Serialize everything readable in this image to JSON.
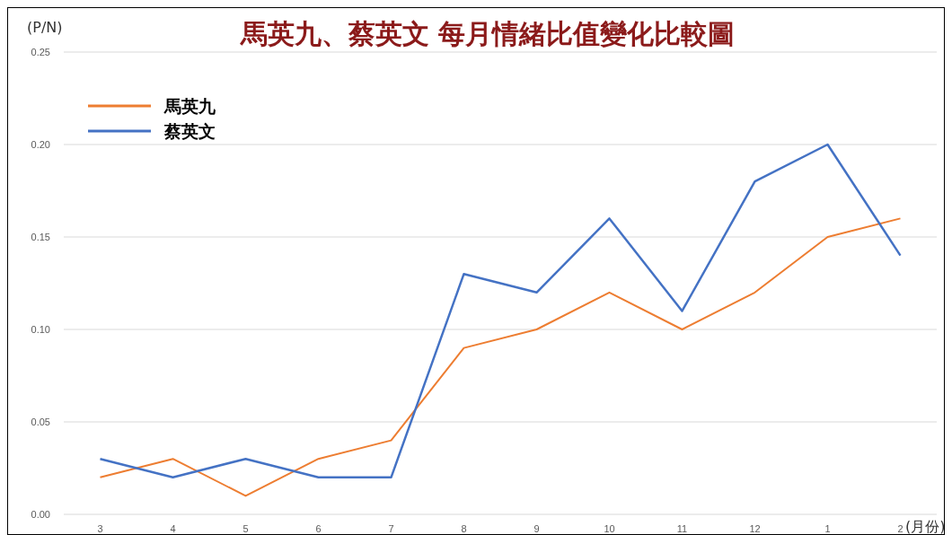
{
  "chart_data": {
    "type": "line",
    "title": "馬英九、蔡英文  每月情緒比值變化比較圖",
    "ylabel": "(P/N)",
    "xlabel": "(月份)",
    "categories": [
      "3",
      "4",
      "5",
      "6",
      "7",
      "8",
      "9",
      "10",
      "11",
      "12",
      "1",
      "2"
    ],
    "series": [
      {
        "name": "馬英九",
        "color": "#ed7d31",
        "values": [
          0.02,
          0.03,
          0.01,
          0.03,
          0.04,
          0.09,
          0.1,
          0.12,
          0.1,
          0.12,
          0.15,
          0.16
        ]
      },
      {
        "name": "蔡英文",
        "color": "#4472c4",
        "values": [
          0.03,
          0.02,
          0.03,
          0.02,
          0.02,
          0.13,
          0.12,
          0.16,
          0.11,
          0.18,
          0.2,
          0.14
        ]
      }
    ],
    "ylim": [
      0,
      0.25
    ],
    "yticks": [
      {
        "value": 0,
        "label": "0.00"
      },
      {
        "value": 0.05,
        "label": "0.05"
      },
      {
        "value": 0.1,
        "label": "0.10"
      },
      {
        "value": 0.15,
        "label": "0.15"
      },
      {
        "value": 0.2,
        "label": "0.20"
      },
      {
        "value": 0.25,
        "label": "0.25"
      }
    ],
    "grid": "y",
    "legend": "top left",
    "marker": "none",
    "line_style": "solid"
  }
}
